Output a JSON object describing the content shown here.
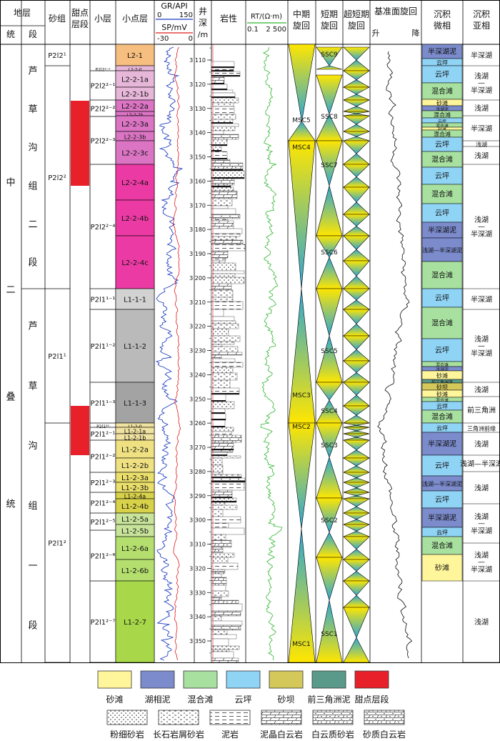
{
  "headers": {
    "strata": "地层",
    "system": "统",
    "section": "段",
    "sand_group": "砂组",
    "sweet_spot": "甜点层段",
    "layer": "小层",
    "sublayer": "小点层",
    "gr": "GR/API",
    "gr_range": [
      "0",
      "150"
    ],
    "sp": "SP/mV",
    "sp_range": [
      "-30",
      "0"
    ],
    "depth": "井深/m",
    "lithology": "岩性",
    "rt": "RT/(Ω·m)",
    "rt_range": [
      "0.1",
      "2 500"
    ],
    "mid_cycle": "中期旋回",
    "short_cycle": "短期旋回",
    "ultra_cycle": "超短期旋回",
    "base_level": "基准面旋回",
    "base_rise": "升",
    "base_fall": "降",
    "microfacies": "沉积微相",
    "subfacies": "沉积亚相"
  },
  "system_label": "中二叠统",
  "sections": [
    {
      "label": "芦草沟组二段"
    },
    {
      "label": "芦草沟组一段"
    }
  ],
  "sand_groups": [
    "P2l2¹",
    "P2l2²",
    "P2l1¹",
    "P2l1²"
  ],
  "layers": [
    "P2l2²⁻⁰",
    "P2l2²⁻¹",
    "P2l2²⁻²",
    "P2l2²⁻³",
    "P2l2²⁻⁴",
    "P2l1¹⁻¹",
    "P2l1¹⁻²",
    "P2l1¹⁻³",
    "P2l1²⁰",
    "P2l1²⁻¹",
    "P2l1²⁻²",
    "P2l1²⁻³",
    "P2l1²⁻⁴",
    "P2l1²⁻⁵",
    "P2l1²⁻⁶",
    "P2l1²⁻⁷"
  ],
  "sublayers": [
    {
      "label": "L2-1",
      "color": "#f6be7f"
    },
    {
      "label": "L2-2-0",
      "color": "#e7b7da"
    },
    {
      "label": "L2-2-1a",
      "color": "#e7b7da"
    },
    {
      "label": "L2-2-1b",
      "color": "#e7b7da"
    },
    {
      "label": "L2-2-2a",
      "color": "#da74c3"
    },
    {
      "label": "L2-2-2b",
      "color": "#da74c3"
    },
    {
      "label": "L2-2-3a",
      "color": "#da74c3"
    },
    {
      "label": "L2-2-3b",
      "color": "#da74c3"
    },
    {
      "label": "L2-2-3c",
      "color": "#da74c3"
    },
    {
      "label": "L2-2-4a",
      "color": "#ec3aa4"
    },
    {
      "label": "L2-2-4b",
      "color": "#ec3aa4"
    },
    {
      "label": "L2-2-4c",
      "color": "#ec3aa4"
    },
    {
      "label": "L1-1-1",
      "color": "#d2d2d2"
    },
    {
      "label": "L1-1-2",
      "color": "#bababa"
    },
    {
      "label": "L1-1-3",
      "color": "#a3a3a3"
    },
    {
      "label": "L1-2-0",
      "color": "#f0e2a0"
    },
    {
      "label": "L1-2-1a",
      "color": "#f0e2a0"
    },
    {
      "label": "L1-2-1b",
      "color": "#f0e2a0"
    },
    {
      "label": "L1-2-2a",
      "color": "#efe182"
    },
    {
      "label": "L1-2-2b",
      "color": "#efe182"
    },
    {
      "label": "L1-2-3a",
      "color": "#e9df6a"
    },
    {
      "label": "L1-2-3b",
      "color": "#e9df6a"
    },
    {
      "label": "L1-2-4a",
      "color": "#d8d24a"
    },
    {
      "label": "L1-2-4b",
      "color": "#d8d24a"
    },
    {
      "label": "L1-2-5a",
      "color": "#c8e39a"
    },
    {
      "label": "L1-2-5b",
      "color": "#c8e39a"
    },
    {
      "label": "L1-2-6a",
      "color": "#b4de6e"
    },
    {
      "label": "L1-2-6b",
      "color": "#b4de6e"
    },
    {
      "label": "L1-2-7",
      "color": "#a8d84a"
    }
  ],
  "depth_ticks": [
    "3 110",
    "3 120",
    "3 130",
    "3 140",
    "3 150",
    "3 160",
    "3 170",
    "3 180",
    "3 190",
    "3 200",
    "3 210",
    "3 220",
    "3 230",
    "3 240",
    "3 250",
    "3 260",
    "3 270",
    "3 280",
    "3 290",
    "3 300",
    "3 310",
    "3 320",
    "3 330",
    "3 340",
    "3 350"
  ],
  "mid_cycles": [
    "MSC5",
    "MSC4",
    "MSC3",
    "MSC2",
    "MSC1"
  ],
  "short_cycles": [
    "SSC9",
    "SSC8",
    "SSC7",
    "SSC6",
    "SSC5",
    "SSC4",
    "SSC3",
    "SSC2",
    "SSC1"
  ],
  "microfacies": [
    {
      "label": "半深湖泥",
      "color": "#7b8bcc"
    },
    {
      "label": "云坪",
      "color": "#8fd3f5"
    },
    {
      "label": "云坪",
      "color": "#8fd3f5"
    },
    {
      "label": "混合滩",
      "color": "#a8e0a0"
    },
    {
      "label": "砂滩",
      "color": "#fff59a"
    },
    {
      "label": "浅湖泥",
      "color": "#7b8bcc"
    },
    {
      "label": "混合滩",
      "color": "#a8e0a0"
    },
    {
      "label": "云坪",
      "color": "#8fd3f5"
    },
    {
      "label": "混合滩",
      "color": "#a8e0a0"
    },
    {
      "label": "砂滩",
      "color": "#fff59a"
    },
    {
      "label": "混合滩",
      "color": "#a8e0a0"
    },
    {
      "label": "云坪",
      "color": "#8fd3f5"
    },
    {
      "label": "混合滩",
      "color": "#a8e0a0"
    },
    {
      "label": "云坪",
      "color": "#8fd3f5"
    },
    {
      "label": "混合滩",
      "color": "#a8e0a0"
    },
    {
      "label": "云坪",
      "color": "#8fd3f5"
    },
    {
      "label": "半深湖泥",
      "color": "#7b8bcc"
    },
    {
      "label": "浅湖—半深湖泥",
      "color": "#7b8bcc"
    },
    {
      "label": "混合滩",
      "color": "#a8e0a0"
    },
    {
      "label": "云坪",
      "color": "#8fd3f5"
    },
    {
      "label": "混合滩",
      "color": "#a8e0a0"
    },
    {
      "label": "云坪",
      "color": "#8fd3f5"
    },
    {
      "label": "混合滩",
      "color": "#a8e0a0"
    },
    {
      "label": "浅湖泥",
      "color": "#7b8bcc"
    },
    {
      "label": "砂滩",
      "color": "#fff59a"
    },
    {
      "label": "前三角洲泥",
      "color": "#5a9a8a"
    },
    {
      "label": "砂坝",
      "color": "#d4c85a"
    },
    {
      "label": "砂滩",
      "color": "#fff59a"
    },
    {
      "label": "混合滩",
      "color": "#a8e0a0"
    },
    {
      "label": "云坪",
      "color": "#8fd3f5"
    },
    {
      "label": "混合滩",
      "color": "#a8e0a0"
    },
    {
      "label": "云坪",
      "color": "#8fd3f5"
    },
    {
      "label": "半深湖泥",
      "color": "#7b8bcc"
    },
    {
      "label": "云坪",
      "color": "#8fd3f5"
    },
    {
      "label": "浅湖—半深湖泥",
      "color": "#7b8bcc"
    },
    {
      "label": "云坪",
      "color": "#8fd3f5"
    },
    {
      "label": "半深湖泥",
      "color": "#7b8bcc"
    },
    {
      "label": "云坪",
      "color": "#8fd3f5"
    },
    {
      "label": "混合滩",
      "color": "#a8e0a0"
    },
    {
      "label": "砂滩",
      "color": "#fff59a"
    }
  ],
  "subfacies": [
    "半深湖",
    "浅湖—半深湖",
    "浅湖",
    "半深湖",
    "浅湖",
    "浅湖",
    "浅湖—半深湖",
    "半深湖",
    "浅湖—半深湖",
    "浅湖",
    "前三角洲",
    "三角洲前缘",
    "浅湖",
    "浅湖—半深湖",
    "浅湖",
    "浅湖—半深湖",
    "浅湖—半深湖",
    "浅湖"
  ],
  "legend_colors": [
    {
      "label": "砂滩",
      "color": "#fff59a"
    },
    {
      "label": "湖相泥",
      "color": "#7b8bcc"
    },
    {
      "label": "混合滩",
      "color": "#a8e0a0"
    },
    {
      "label": "云坪",
      "color": "#8fd3f5"
    },
    {
      "label": "砂坝",
      "color": "#d4c85a"
    },
    {
      "label": "前三角洲泥",
      "color": "#5a9a8a"
    },
    {
      "label": "甜点层段",
      "color": "#e8202a"
    }
  ],
  "legend_patterns": [
    {
      "label": "粉细砂岩"
    },
    {
      "label": "长石岩屑砂岩"
    },
    {
      "label": "泥岩"
    },
    {
      "label": "泥晶白云岩"
    },
    {
      "label": "白云质砂岩"
    },
    {
      "label": "砂质白云岩"
    }
  ]
}
